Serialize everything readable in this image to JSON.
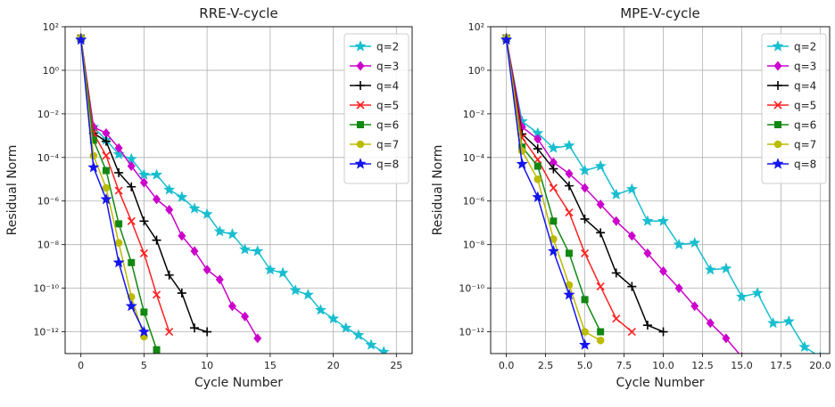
{
  "chart_data": [
    {
      "type": "line",
      "title": "RRE-V-cycle",
      "xlabel": "Cycle Number",
      "ylabel": "Residual Norm",
      "y_scale": "log",
      "ylim": [
        1e-13,
        100
      ],
      "xlim": [
        -1.25,
        26.25
      ],
      "xticks": [
        0,
        5,
        10,
        15,
        20,
        25
      ],
      "xtick_labels": [
        "0",
        "5",
        "10",
        "15",
        "20",
        "25"
      ],
      "ytick_exponents": [
        2,
        0,
        -2,
        -4,
        -6,
        -8,
        -10,
        -12
      ],
      "grid": true,
      "legend_position": "top-right",
      "series": [
        {
          "name": "q=2",
          "color": "#17becf",
          "marker": "star",
          "x": [
            0,
            1,
            2,
            3,
            4,
            5,
            6,
            7,
            8,
            9,
            10,
            11,
            12,
            13,
            14,
            15,
            16,
            17,
            18,
            19,
            20,
            21,
            22,
            23,
            24,
            25
          ],
          "y": [
            25,
            0.0025,
            0.00063,
            0.00014,
            8.5e-05,
            1.6e-05,
            1.6e-05,
            3.3e-06,
            1.5e-06,
            4.5e-07,
            2.5e-07,
            4e-08,
            3e-08,
            6e-09,
            5e-09,
            7e-10,
            5e-10,
            8e-11,
            5e-11,
            1e-11,
            4e-12,
            1.5e-12,
            7e-13,
            2.5e-13,
            1.2e-13,
            5e-14
          ]
        },
        {
          "name": "q=3",
          "color": "#cc00cc",
          "marker": "diamond",
          "x": [
            0,
            1,
            2,
            3,
            4,
            5,
            6,
            7,
            8,
            9,
            10,
            11,
            12,
            13,
            14
          ],
          "y": [
            30,
            0.0025,
            0.0013,
            0.00027,
            4e-05,
            7e-06,
            1.2e-06,
            4e-07,
            2.5e-08,
            5e-09,
            7e-10,
            2.5e-10,
            1.5e-11,
            5e-12,
            5e-13
          ]
        },
        {
          "name": "q=4",
          "color": "#000000",
          "marker": "plus",
          "x": [
            0,
            1,
            2,
            3,
            4,
            5,
            6,
            7,
            8,
            9,
            10
          ],
          "y": [
            30,
            0.0013,
            0.00055,
            2e-05,
            4.5e-06,
            1.2e-07,
            1.6e-08,
            4e-10,
            6e-11,
            1.5e-12,
            1e-12
          ]
        },
        {
          "name": "q=5",
          "color": "#ff2020",
          "marker": "x",
          "x": [
            0,
            1,
            2,
            3,
            4,
            5,
            6,
            7
          ],
          "y": [
            30,
            0.0013,
            0.00012,
            3e-06,
            1.2e-07,
            4e-09,
            5e-11,
            1e-12
          ]
        },
        {
          "name": "q=6",
          "color": "#118811",
          "marker": "square",
          "x": [
            0,
            1,
            2,
            3,
            4,
            5,
            6
          ],
          "y": [
            30,
            0.00062,
            2.5e-05,
            9e-08,
            1.5e-09,
            8e-12,
            1.5e-13
          ]
        },
        {
          "name": "q=7",
          "color": "#bbbb00",
          "marker": "circle",
          "x": [
            0,
            1,
            2,
            3,
            4,
            5
          ],
          "y": [
            30,
            0.00012,
            4e-06,
            1.2e-08,
            4e-11,
            6e-13
          ]
        },
        {
          "name": "q=8",
          "color": "#1515ee",
          "marker": "star",
          "x": [
            0,
            1,
            2,
            3,
            4,
            5
          ],
          "y": [
            25,
            3.5e-05,
            1.2e-06,
            1.5e-09,
            1.5e-11,
            1e-12
          ]
        }
      ]
    },
    {
      "type": "line",
      "title": "MPE-V-cycle",
      "xlabel": "Cycle Number",
      "ylabel": "Residual Norm",
      "y_scale": "log",
      "ylim": [
        1e-13,
        100
      ],
      "xlim": [
        -1.0,
        20.6
      ],
      "xticks": [
        0,
        2.5,
        5,
        7.5,
        10,
        12.5,
        15,
        17.5,
        20
      ],
      "xtick_labels": [
        "0.0",
        "2.5",
        "5.0",
        "7.5",
        "10.0",
        "12.5",
        "15.0",
        "17.5",
        "20.0"
      ],
      "ytick_exponents": [
        2,
        0,
        -2,
        -4,
        -6,
        -8,
        -10,
        -12
      ],
      "grid": true,
      "legend_position": "top-right",
      "series": [
        {
          "name": "q=2",
          "color": "#17becf",
          "marker": "star",
          "x": [
            0,
            1,
            2,
            3,
            4,
            5,
            6,
            7,
            8,
            9,
            10,
            11,
            12,
            13,
            14,
            15,
            16,
            17,
            18,
            19,
            20
          ],
          "y": [
            25,
            0.0045,
            0.0013,
            0.00027,
            0.00035,
            2.5e-05,
            4e-05,
            2e-06,
            3.5e-06,
            1.2e-07,
            1.2e-07,
            1e-08,
            1.2e-08,
            7e-10,
            8e-10,
            4e-11,
            6e-11,
            2.5e-12,
            3e-12,
            2e-13,
            7e-14
          ]
        },
        {
          "name": "q=3",
          "color": "#cc00cc",
          "marker": "diamond",
          "x": [
            0,
            1,
            2,
            3,
            4,
            5,
            6,
            7,
            8,
            9,
            10,
            11,
            12,
            13,
            14,
            15
          ],
          "y": [
            30,
            0.0025,
            0.0007,
            6e-05,
            1.8e-05,
            4e-06,
            7e-07,
            1.2e-07,
            2.5e-08,
            4e-09,
            6e-10,
            1e-10,
            1.5e-11,
            2.5e-12,
            5e-13,
            7e-14
          ]
        },
        {
          "name": "q=4",
          "color": "#000000",
          "marker": "plus",
          "x": [
            0,
            1,
            2,
            3,
            4,
            5,
            6,
            7,
            8,
            9,
            10
          ],
          "y": [
            30,
            0.0012,
            0.00025,
            3e-05,
            5e-06,
            1.5e-07,
            3.5e-08,
            5e-10,
            1.2e-10,
            2e-12,
            1e-12
          ]
        },
        {
          "name": "q=5",
          "color": "#ff2020",
          "marker": "x",
          "x": [
            0,
            1,
            2,
            3,
            4,
            5,
            6,
            7,
            8
          ],
          "y": [
            30,
            0.0008,
            8e-05,
            4e-06,
            3e-07,
            4e-09,
            1.2e-10,
            4e-12,
            1e-12
          ]
        },
        {
          "name": "q=6",
          "color": "#118811",
          "marker": "square",
          "x": [
            0,
            1,
            2,
            3,
            4,
            5,
            6
          ],
          "y": [
            30,
            0.0003,
            4e-05,
            1.2e-07,
            4e-09,
            3e-11,
            1e-12
          ]
        },
        {
          "name": "q=7",
          "color": "#bbbb00",
          "marker": "circle",
          "x": [
            0,
            1,
            2,
            3,
            4,
            5,
            6
          ],
          "y": [
            30,
            0.0002,
            1e-05,
            1.8e-08,
            1.4e-10,
            1e-12,
            4e-13
          ]
        },
        {
          "name": "q=8",
          "color": "#1515ee",
          "marker": "star",
          "x": [
            0,
            1,
            2,
            3,
            4,
            5
          ],
          "y": [
            25,
            5e-05,
            1.5e-06,
            5e-09,
            5e-11,
            2.5e-13
          ]
        }
      ]
    }
  ]
}
